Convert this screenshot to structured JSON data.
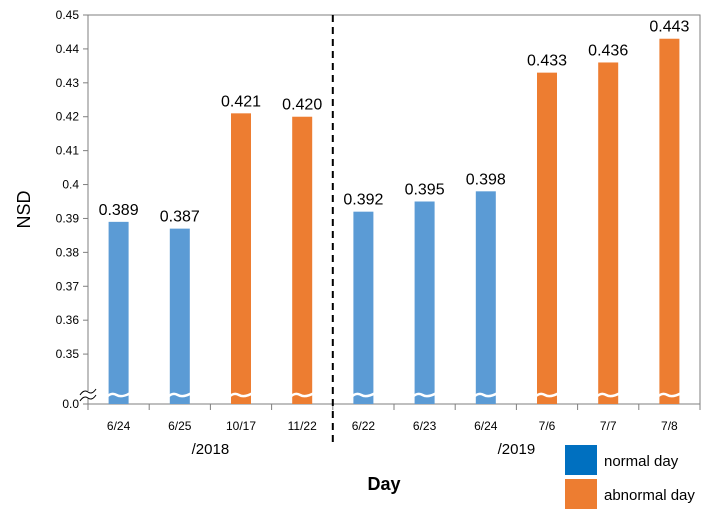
{
  "chart_data": {
    "type": "bar",
    "title": "",
    "xlabel": "Day",
    "ylabel": "NSD",
    "ylim": [
      0.0,
      0.45
    ],
    "axis_break": {
      "from": 0.0,
      "to": 0.34
    },
    "yticks": [
      "0.0",
      "0.35",
      "0.36",
      "0.37",
      "0.38",
      "0.39",
      "0.4",
      "0.41",
      "0.42",
      "0.43",
      "0.44",
      "0.45"
    ],
    "ytick_values": [
      0.34,
      0.35,
      0.36,
      0.37,
      0.38,
      0.39,
      0.4,
      0.41,
      0.42,
      0.43,
      0.44,
      0.45
    ],
    "categories": [
      "6/24",
      "6/25",
      "10/17",
      "11/22",
      "6/22",
      "6/23",
      "6/24",
      "7/6",
      "7/7",
      "7/8"
    ],
    "values": [
      0.389,
      0.387,
      0.421,
      0.42,
      0.392,
      0.395,
      0.398,
      0.433,
      0.436,
      0.443
    ],
    "data_labels": [
      "0.389",
      "0.387",
      "0.421",
      "0.420",
      "0.392",
      "0.395",
      "0.398",
      "0.433",
      "0.436",
      "0.443"
    ],
    "kinds": [
      "normal",
      "normal",
      "abnormal",
      "abnormal",
      "normal",
      "normal",
      "normal",
      "abnormal",
      "abnormal",
      "abnormal"
    ],
    "groups": [
      {
        "label": "/2018",
        "start": 0,
        "end": 3
      },
      {
        "label": "/2019",
        "start": 4,
        "end": 9
      }
    ],
    "divider_after_index": 3,
    "legend": {
      "position": "bottom-right",
      "items": [
        {
          "key": "normal",
          "label": "normal day",
          "color": "#0070C0"
        },
        {
          "key": "abnormal",
          "label": "abnormal day",
          "color": "#ED7D31"
        }
      ]
    },
    "colors": {
      "normal": "#5B9BD5",
      "abnormal": "#ED7D31"
    },
    "grid": false
  }
}
